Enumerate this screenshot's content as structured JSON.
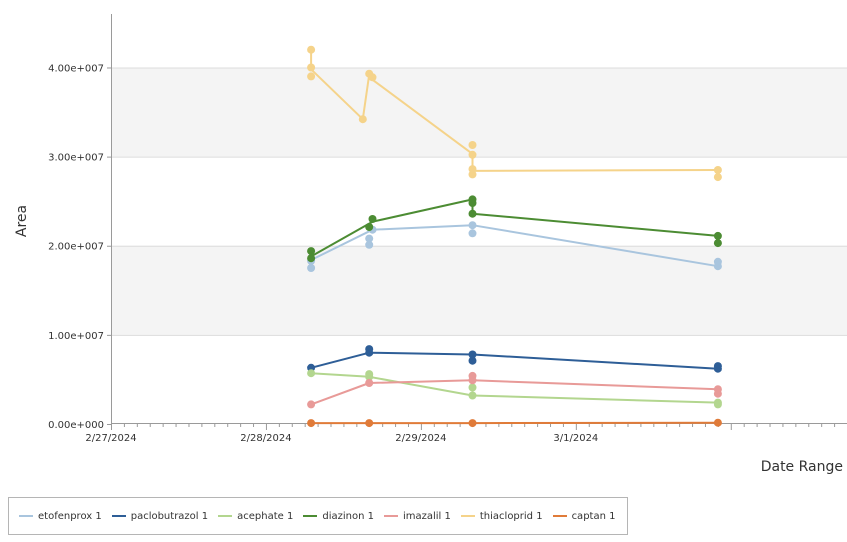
{
  "chart_data": {
    "type": "line",
    "title": "",
    "xlabel": "Date Range",
    "ylabel": "Area",
    "x_ticks": [
      "2/27/2024",
      "2/28/2024",
      "2/29/2024",
      "3/1/2024"
    ],
    "x_range": [
      "2/27/2024 00:00",
      "3/2/2024 18:00"
    ],
    "y_ticks": [
      "0.00e+000",
      "1.00e+007",
      "2.00e+007",
      "3.00e+007",
      "4.00e+007"
    ],
    "ylim": [
      0,
      46000000
    ],
    "grid": "horizontal bands",
    "legend_position": "bottom-left",
    "series": [
      {
        "name": "etofenprox 1",
        "color": "#a9c5de",
        "line": [
          [
            "2/28/2024 07:00",
            18400000
          ],
          [
            "2/28/2024 16:30",
            21800000
          ],
          [
            "2/29/2024 08:00",
            22300000
          ],
          [
            "3/1/2024 22:00",
            17700000
          ]
        ],
        "points": [
          [
            "2/28/2024 07:00",
            17500000
          ],
          [
            "2/28/2024 07:00",
            18300000
          ],
          [
            "2/28/2024 16:00",
            20100000
          ],
          [
            "2/28/2024 16:00",
            20800000
          ],
          [
            "2/28/2024 16:30",
            21800000
          ],
          [
            "2/29/2024 08:00",
            22300000
          ],
          [
            "2/29/2024 08:00",
            21400000
          ],
          [
            "3/1/2024 22:00",
            17700000
          ],
          [
            "3/1/2024 22:00",
            18200000
          ]
        ]
      },
      {
        "name": "paclobutrazol 1",
        "color": "#2e5e97",
        "line": [
          [
            "2/28/2024 07:00",
            6300000
          ],
          [
            "2/28/2024 16:00",
            8000000
          ],
          [
            "2/29/2024 08:00",
            7800000
          ],
          [
            "3/1/2024 22:00",
            6200000
          ]
        ],
        "points": [
          [
            "2/28/2024 07:00",
            6300000
          ],
          [
            "2/28/2024 16:00",
            8000000
          ],
          [
            "2/28/2024 16:00",
            8400000
          ],
          [
            "2/29/2024 08:00",
            7800000
          ],
          [
            "2/29/2024 08:00",
            7100000
          ],
          [
            "3/1/2024 22:00",
            6200000
          ],
          [
            "3/1/2024 22:00",
            6500000
          ]
        ]
      },
      {
        "name": "acephate 1",
        "color": "#b3d68f",
        "line": [
          [
            "2/28/2024 07:00",
            5700000
          ],
          [
            "2/28/2024 16:00",
            5300000
          ],
          [
            "2/29/2024 08:00",
            3200000
          ],
          [
            "3/1/2024 22:00",
            2400000
          ]
        ],
        "points": [
          [
            "2/28/2024 07:00",
            5700000
          ],
          [
            "2/28/2024 16:00",
            5300000
          ],
          [
            "2/28/2024 16:00",
            5600000
          ],
          [
            "2/29/2024 08:00",
            4100000
          ],
          [
            "2/29/2024 08:00",
            3200000
          ],
          [
            "3/1/2024 22:00",
            2400000
          ],
          [
            "3/1/2024 22:00",
            2200000
          ]
        ]
      },
      {
        "name": "diazinon 1",
        "color": "#4c8c33",
        "line": [
          [
            "2/28/2024 07:00",
            18800000
          ],
          [
            "2/28/2024 16:30",
            22700000
          ],
          [
            "2/29/2024 08:00",
            25200000
          ],
          [
            "2/29/2024 08:00",
            23600000
          ],
          [
            "3/1/2024 22:00",
            21100000
          ]
        ],
        "points": [
          [
            "2/28/2024 07:00",
            19400000
          ],
          [
            "2/28/2024 07:00",
            18600000
          ],
          [
            "2/28/2024 16:00",
            22100000
          ],
          [
            "2/28/2024 16:30",
            23000000
          ],
          [
            "2/29/2024 08:00",
            25200000
          ],
          [
            "2/29/2024 08:00",
            24800000
          ],
          [
            "2/29/2024 08:00",
            23600000
          ],
          [
            "3/1/2024 22:00",
            21100000
          ],
          [
            "3/1/2024 22:00",
            20300000
          ]
        ]
      },
      {
        "name": "imazalil 1",
        "color": "#e89a98",
        "line": [
          [
            "2/28/2024 07:00",
            2200000
          ],
          [
            "2/28/2024 16:00",
            4600000
          ],
          [
            "2/29/2024 08:00",
            4900000
          ],
          [
            "3/1/2024 22:00",
            3900000
          ]
        ],
        "points": [
          [
            "2/28/2024 07:00",
            2200000
          ],
          [
            "2/28/2024 16:00",
            4600000
          ],
          [
            "2/29/2024 08:00",
            5400000
          ],
          [
            "2/29/2024 08:00",
            4900000
          ],
          [
            "3/1/2024 22:00",
            3900000
          ],
          [
            "3/1/2024 22:00",
            3400000
          ]
        ]
      },
      {
        "name": "thiacloprid 1",
        "color": "#f5d38a",
        "line": [
          [
            "2/28/2024 07:00",
            41800000
          ],
          [
            "2/28/2024 07:00",
            39800000
          ],
          [
            "2/28/2024 15:00",
            34200000
          ],
          [
            "2/28/2024 16:00",
            39200000
          ],
          [
            "2/28/2024 16:00",
            38900000
          ],
          [
            "2/29/2024 08:00",
            30300000
          ],
          [
            "2/29/2024 08:00",
            28400000
          ],
          [
            "3/1/2024 22:00",
            28500000
          ]
        ],
        "points": [
          [
            "2/28/2024 07:00",
            42000000
          ],
          [
            "2/28/2024 07:00",
            40000000
          ],
          [
            "2/28/2024 07:00",
            39000000
          ],
          [
            "2/28/2024 15:00",
            34200000
          ],
          [
            "2/28/2024 16:00",
            39300000
          ],
          [
            "2/28/2024 16:30",
            38900000
          ],
          [
            "2/29/2024 08:00",
            31300000
          ],
          [
            "2/29/2024 08:00",
            30200000
          ],
          [
            "2/29/2024 08:00",
            28600000
          ],
          [
            "2/29/2024 08:00",
            28000000
          ],
          [
            "3/1/2024 22:00",
            28500000
          ],
          [
            "3/1/2024 22:00",
            27700000
          ]
        ]
      },
      {
        "name": "captan 1",
        "color": "#e07b39",
        "line": [
          [
            "2/28/2024 07:00",
            100000
          ],
          [
            "2/28/2024 16:00",
            100000
          ],
          [
            "2/29/2024 08:00",
            100000
          ],
          [
            "3/1/2024 22:00",
            150000
          ]
        ],
        "points": [
          [
            "2/28/2024 07:00",
            100000
          ],
          [
            "2/28/2024 16:00",
            100000
          ],
          [
            "2/29/2024 08:00",
            100000
          ],
          [
            "3/1/2024 22:00",
            150000
          ]
        ]
      }
    ]
  }
}
